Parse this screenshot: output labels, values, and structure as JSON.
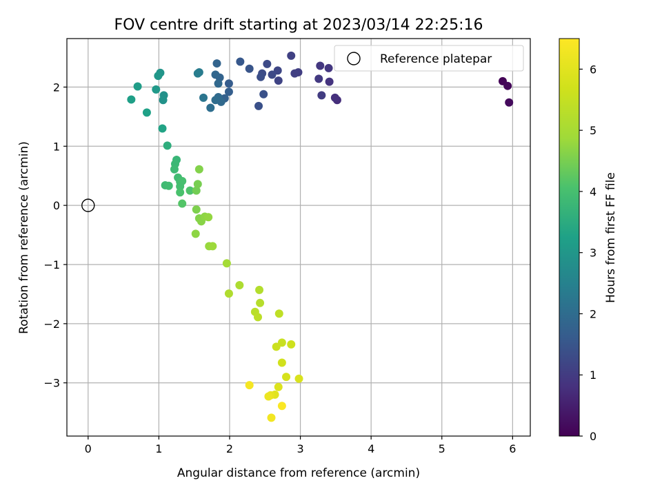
{
  "chart_data": {
    "type": "scatter",
    "title": "FOV centre drift starting at 2023/03/14 22:25:16",
    "xlabel": "Angular distance from reference (arcmin)",
    "ylabel": "Rotation from reference (arcmin)",
    "xlim": [
      -0.3,
      6.25
    ],
    "ylim": [
      -3.9,
      2.82
    ],
    "xticks": [
      "0",
      "1",
      "2",
      "3",
      "4",
      "5",
      "6"
    ],
    "yticks": [
      "−3",
      "−2",
      "−1",
      "0",
      "1",
      "2"
    ],
    "grid": true,
    "legend": {
      "label": "Reference platepar",
      "placement": "upper-right"
    },
    "colorbar": {
      "label": "Hours from first FF file",
      "range": [
        0,
        6.5
      ],
      "ticks": [
        "0",
        "1",
        "2",
        "3",
        "4",
        "5",
        "6"
      ],
      "colormap": "viridis"
    },
    "reference_point": {
      "x": 0,
      "y": 0
    },
    "points": [
      {
        "x": 5.86,
        "y": 2.1,
        "c": 0.05
      },
      {
        "x": 5.93,
        "y": 2.02,
        "c": 0.1
      },
      {
        "x": 5.95,
        "y": 1.74,
        "c": 0.15
      },
      {
        "x": 3.52,
        "y": 1.78,
        "c": 0.75
      },
      {
        "x": 3.49,
        "y": 1.82,
        "c": 0.8
      },
      {
        "x": 3.41,
        "y": 2.09,
        "c": 0.85
      },
      {
        "x": 3.4,
        "y": 2.32,
        "c": 0.9
      },
      {
        "x": 3.28,
        "y": 2.36,
        "c": 0.92
      },
      {
        "x": 3.26,
        "y": 2.14,
        "c": 0.95
      },
      {
        "x": 3.3,
        "y": 1.86,
        "c": 1.0
      },
      {
        "x": 2.97,
        "y": 2.25,
        "c": 1.05
      },
      {
        "x": 2.92,
        "y": 2.23,
        "c": 1.08
      },
      {
        "x": 2.87,
        "y": 2.53,
        "c": 1.1
      },
      {
        "x": 2.69,
        "y": 2.11,
        "c": 1.15
      },
      {
        "x": 2.68,
        "y": 2.28,
        "c": 1.2
      },
      {
        "x": 2.6,
        "y": 2.21,
        "c": 1.25
      },
      {
        "x": 2.53,
        "y": 2.39,
        "c": 1.28
      },
      {
        "x": 2.46,
        "y": 2.23,
        "c": 1.32
      },
      {
        "x": 2.44,
        "y": 2.17,
        "c": 1.36
      },
      {
        "x": 2.41,
        "y": 1.68,
        "c": 1.4
      },
      {
        "x": 2.48,
        "y": 1.88,
        "c": 1.42
      },
      {
        "x": 2.28,
        "y": 2.31,
        "c": 1.48
      },
      {
        "x": 2.15,
        "y": 2.43,
        "c": 1.55
      },
      {
        "x": 1.99,
        "y": 2.06,
        "c": 1.65
      },
      {
        "x": 1.99,
        "y": 1.92,
        "c": 1.7
      },
      {
        "x": 1.93,
        "y": 1.81,
        "c": 1.75
      },
      {
        "x": 1.86,
        "y": 2.16,
        "c": 1.78
      },
      {
        "x": 1.82,
        "y": 2.4,
        "c": 1.8
      },
      {
        "x": 1.8,
        "y": 2.21,
        "c": 1.85
      },
      {
        "x": 1.84,
        "y": 2.06,
        "c": 1.9
      },
      {
        "x": 1.88,
        "y": 1.75,
        "c": 1.92
      },
      {
        "x": 1.84,
        "y": 1.83,
        "c": 1.95
      },
      {
        "x": 1.8,
        "y": 1.78,
        "c": 2.0
      },
      {
        "x": 1.73,
        "y": 1.65,
        "c": 2.05
      },
      {
        "x": 1.63,
        "y": 1.82,
        "c": 2.2
      },
      {
        "x": 1.57,
        "y": 2.25,
        "c": 2.35
      },
      {
        "x": 1.55,
        "y": 2.23,
        "c": 2.4
      },
      {
        "x": 1.07,
        "y": 1.86,
        "c": 2.85
      },
      {
        "x": 1.06,
        "y": 1.78,
        "c": 2.9
      },
      {
        "x": 1.02,
        "y": 2.24,
        "c": 2.95
      },
      {
        "x": 0.99,
        "y": 2.19,
        "c": 3.0
      },
      {
        "x": 0.96,
        "y": 1.96,
        "c": 3.05
      },
      {
        "x": 0.7,
        "y": 2.01,
        "c": 3.15
      },
      {
        "x": 0.61,
        "y": 1.79,
        "c": 3.2
      },
      {
        "x": 0.83,
        "y": 1.57,
        "c": 3.25
      },
      {
        "x": 1.05,
        "y": 1.3,
        "c": 3.3
      },
      {
        "x": 1.12,
        "y": 1.01,
        "c": 3.55
      },
      {
        "x": 1.25,
        "y": 0.77,
        "c": 3.75
      },
      {
        "x": 1.23,
        "y": 0.7,
        "c": 3.8
      },
      {
        "x": 1.22,
        "y": 0.61,
        "c": 3.85
      },
      {
        "x": 1.27,
        "y": 0.47,
        "c": 3.9
      },
      {
        "x": 1.3,
        "y": 0.4,
        "c": 3.95
      },
      {
        "x": 1.33,
        "y": 0.41,
        "c": 4.0
      },
      {
        "x": 1.09,
        "y": 0.34,
        "c": 3.88
      },
      {
        "x": 1.14,
        "y": 0.33,
        "c": 3.92
      },
      {
        "x": 1.3,
        "y": 0.32,
        "c": 3.98
      },
      {
        "x": 1.3,
        "y": 0.22,
        "c": 4.05
      },
      {
        "x": 1.44,
        "y": 0.25,
        "c": 4.1
      },
      {
        "x": 1.33,
        "y": 0.03,
        "c": 4.15
      },
      {
        "x": 1.53,
        "y": 0.25,
        "c": 4.45
      },
      {
        "x": 1.55,
        "y": 0.36,
        "c": 4.5
      },
      {
        "x": 1.57,
        "y": 0.61,
        "c": 4.6
      },
      {
        "x": 1.53,
        "y": -0.07,
        "c": 4.55
      },
      {
        "x": 1.57,
        "y": -0.22,
        "c": 4.6
      },
      {
        "x": 1.6,
        "y": -0.27,
        "c": 4.65
      },
      {
        "x": 1.65,
        "y": -0.19,
        "c": 4.7
      },
      {
        "x": 1.7,
        "y": -0.2,
        "c": 4.75
      },
      {
        "x": 1.52,
        "y": -0.48,
        "c": 4.7
      },
      {
        "x": 1.71,
        "y": -0.69,
        "c": 4.8
      },
      {
        "x": 1.76,
        "y": -0.69,
        "c": 4.85
      },
      {
        "x": 1.96,
        "y": -0.98,
        "c": 4.95
      },
      {
        "x": 2.14,
        "y": -1.35,
        "c": 5.1
      },
      {
        "x": 1.99,
        "y": -1.49,
        "c": 5.15
      },
      {
        "x": 2.42,
        "y": -1.43,
        "c": 5.2
      },
      {
        "x": 2.43,
        "y": -1.65,
        "c": 5.25
      },
      {
        "x": 2.36,
        "y": -1.8,
        "c": 5.3
      },
      {
        "x": 2.4,
        "y": -1.89,
        "c": 5.35
      },
      {
        "x": 2.7,
        "y": -1.83,
        "c": 5.4
      },
      {
        "x": 2.74,
        "y": -2.32,
        "c": 5.55
      },
      {
        "x": 2.66,
        "y": -2.39,
        "c": 5.6
      },
      {
        "x": 2.87,
        "y": -2.35,
        "c": 5.65
      },
      {
        "x": 2.74,
        "y": -2.66,
        "c": 5.7
      },
      {
        "x": 2.8,
        "y": -2.9,
        "c": 5.8
      },
      {
        "x": 2.98,
        "y": -2.93,
        "c": 5.85
      },
      {
        "x": 2.69,
        "y": -3.07,
        "c": 5.9
      },
      {
        "x": 2.64,
        "y": -3.2,
        "c": 6.0
      },
      {
        "x": 2.58,
        "y": -3.21,
        "c": 6.1
      },
      {
        "x": 2.55,
        "y": -3.23,
        "c": 6.2
      },
      {
        "x": 2.28,
        "y": -3.04,
        "c": 6.35
      },
      {
        "x": 2.59,
        "y": -3.59,
        "c": 6.3
      },
      {
        "x": 2.74,
        "y": -3.39,
        "c": 6.45
      }
    ]
  }
}
